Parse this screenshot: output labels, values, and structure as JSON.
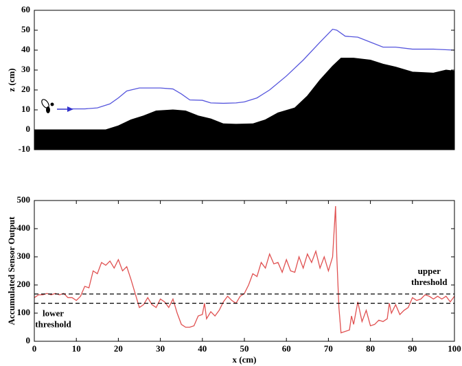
{
  "chart_data": [
    {
      "type": "line",
      "ylabel": "z (cm)",
      "xlim": [
        0,
        100
      ],
      "ylim": [
        -10,
        60
      ],
      "yticks": [
        -10,
        0,
        10,
        20,
        30,
        40,
        50,
        60
      ],
      "series": [
        {
          "color": "#000000",
          "fill": true,
          "x": [
            0,
            5,
            17,
            20,
            23,
            26,
            29,
            33,
            36,
            39,
            42,
            45,
            48,
            52,
            55,
            58,
            62,
            65,
            68,
            71,
            73,
            76,
            80,
            83,
            86,
            90,
            95,
            98,
            100
          ],
          "values": [
            0,
            0,
            0,
            2,
            5,
            7,
            9.5,
            10,
            9.5,
            7,
            5.5,
            3,
            2.8,
            3,
            5,
            8.5,
            11,
            17,
            25,
            32,
            36,
            36,
            35,
            33,
            31.5,
            29,
            28.5,
            30,
            29.5
          ]
        },
        {
          "color": "#5555dd",
          "fill": false,
          "x": [
            8,
            12,
            15,
            18,
            20,
            22,
            25,
            30,
            33,
            35,
            37,
            40,
            42,
            45,
            48,
            50,
            53,
            56,
            60,
            64,
            68,
            71,
            72,
            74,
            77,
            80,
            83,
            86,
            90,
            95,
            100
          ],
          "values": [
            10.5,
            10.5,
            11,
            13,
            16,
            19.5,
            21,
            21,
            20.5,
            18,
            15,
            14.8,
            13.5,
            13.3,
            13.5,
            14,
            16,
            20,
            27,
            35,
            44,
            50.5,
            50,
            47,
            46.5,
            44,
            41.5,
            41.5,
            40.5,
            40.5,
            40
          ]
        }
      ]
    },
    {
      "type": "line",
      "ylabel": "Accumulated Sensor Output",
      "xlabel": "x (cm)",
      "xlim": [
        0,
        100
      ],
      "ylim": [
        0,
        500
      ],
      "xticks": [
        0,
        10,
        20,
        30,
        40,
        50,
        60,
        70,
        80,
        90,
        100
      ],
      "yticks": [
        0,
        100,
        200,
        300,
        400,
        500
      ],
      "series": [
        {
          "color": "#e05050",
          "fill": false,
          "x": [
            0,
            1,
            2,
            3,
            4,
            5,
            6,
            7,
            8,
            9,
            10,
            11,
            12,
            13,
            14,
            15,
            16,
            17,
            18,
            19,
            20,
            21,
            22,
            23,
            24,
            25,
            26,
            27,
            28,
            29,
            30,
            31,
            32,
            33,
            34,
            35,
            36,
            37,
            38,
            39,
            40,
            40.5,
            41,
            42,
            43,
            44,
            45,
            46,
            47,
            48,
            49,
            50,
            51,
            52,
            53,
            54,
            55,
            56,
            57,
            58,
            59,
            60,
            61,
            62,
            63,
            64,
            65,
            66,
            67,
            68,
            69,
            70,
            71,
            71.7,
            72,
            72.5,
            73,
            74,
            75,
            75.5,
            76,
            77,
            78,
            79,
            80,
            81,
            82,
            83,
            84,
            84.5,
            85,
            86,
            87,
            88,
            89,
            90,
            91,
            92,
            93,
            94,
            95,
            96,
            97,
            98,
            99,
            100
          ],
          "values": [
            155,
            165,
            165,
            170,
            165,
            170,
            165,
            170,
            155,
            155,
            145,
            160,
            195,
            190,
            250,
            240,
            280,
            270,
            285,
            260,
            290,
            250,
            265,
            220,
            170,
            120,
            130,
            155,
            130,
            120,
            150,
            140,
            120,
            150,
            100,
            60,
            50,
            50,
            55,
            90,
            95,
            135,
            80,
            105,
            90,
            110,
            140,
            160,
            145,
            135,
            160,
            170,
            200,
            240,
            230,
            280,
            260,
            310,
            275,
            280,
            245,
            290,
            250,
            245,
            300,
            260,
            310,
            280,
            320,
            260,
            300,
            250,
            300,
            480,
            300,
            120,
            30,
            35,
            40,
            90,
            60,
            140,
            70,
            110,
            55,
            60,
            75,
            70,
            80,
            135,
            100,
            130,
            95,
            110,
            120,
            155,
            145,
            150,
            165,
            160,
            150,
            160,
            150,
            160,
            140,
            160
          ]
        }
      ],
      "hlines": [
        {
          "value": 168,
          "color": "#000000",
          "label": [
            "upper",
            "threshold"
          ]
        },
        {
          "value": 135,
          "color": "#000000",
          "label": [
            "lower",
            "threshold"
          ]
        }
      ]
    }
  ]
}
